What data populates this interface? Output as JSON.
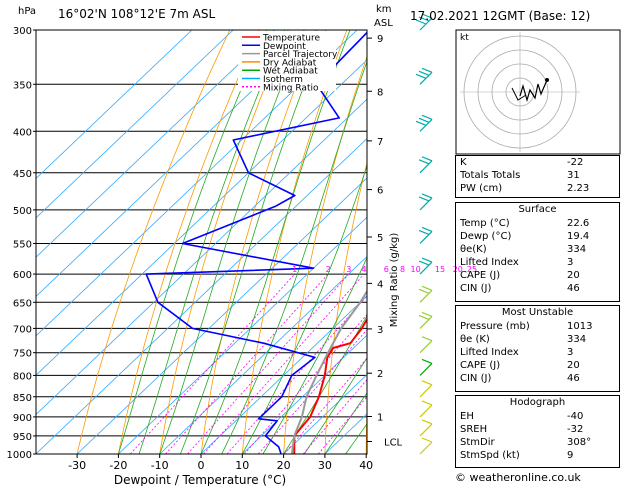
{
  "header": {
    "location": "16°02'N 108°12'E 7m ASL",
    "datetime": "17.02.2021 12GMT (Base: 12)",
    "hpa_label": "hPa",
    "km_label": "km",
    "asl_label": "ASL"
  },
  "legend": [
    {
      "name": "Temperature",
      "color": "#ff0000",
      "dash": ""
    },
    {
      "name": "Dewpoint",
      "color": "#0000ff",
      "dash": ""
    },
    {
      "name": "Parcel Trajectory",
      "color": "#999999",
      "dash": ""
    },
    {
      "name": "Dry Adiabat",
      "color": "#ff8c00",
      "dash": ""
    },
    {
      "name": "Wet Adiabat",
      "color": "#00aa00",
      "dash": ""
    },
    {
      "name": "Isotherm",
      "color": "#00aaff",
      "dash": ""
    },
    {
      "name": "Mixing Ratio",
      "color": "#ff00ff",
      "dash": "2,2"
    }
  ],
  "chart_data": {
    "type": "line",
    "xlabel": "Dewpoint / Temperature (°C)",
    "ylabel": "hPa",
    "right_label": "Mixing Ratio (g/kg)",
    "xlim": [
      -35,
      40
    ],
    "ylim": [
      1000,
      300
    ],
    "x_ticks": [
      -30,
      -20,
      -10,
      0,
      10,
      20,
      30,
      40
    ],
    "pressure_ticks": [
      300,
      350,
      400,
      450,
      500,
      550,
      600,
      650,
      700,
      750,
      800,
      850,
      900,
      950,
      1000
    ],
    "km_ticks": [
      {
        "label": "9",
        "p": 307
      },
      {
        "label": "8",
        "p": 357
      },
      {
        "label": "7",
        "p": 411
      },
      {
        "label": "6",
        "p": 472
      },
      {
        "label": "5",
        "p": 540
      },
      {
        "label": "4",
        "p": 616
      },
      {
        "label": "3",
        "p": 701
      },
      {
        "label": "2",
        "p": 795
      },
      {
        "label": "1",
        "p": 899
      }
    ],
    "lcl": {
      "label": "LCL",
      "p": 965
    },
    "mixing_ratios": [
      "1",
      "2",
      "3",
      "4",
      "6",
      "8",
      "10",
      "15",
      "20",
      "25"
    ],
    "series": [
      {
        "name": "Temperature",
        "color": "#ff0000",
        "points": [
          [
            300,
            -32
          ],
          [
            350,
            -24
          ],
          [
            400,
            -16
          ],
          [
            450,
            -8
          ],
          [
            480,
            -5
          ],
          [
            500,
            -5
          ],
          [
            550,
            -1
          ],
          [
            600,
            2
          ],
          [
            650,
            4
          ],
          [
            700,
            7
          ],
          [
            730,
            8
          ],
          [
            740,
            5
          ],
          [
            760,
            6
          ],
          [
            800,
            10
          ],
          [
            850,
            14
          ],
          [
            900,
            17
          ],
          [
            950,
            18
          ],
          [
            1000,
            22.6
          ]
        ]
      },
      {
        "name": "Dewpoint",
        "color": "#0000ff",
        "points": [
          [
            300,
            -67
          ],
          [
            350,
            -66
          ],
          [
            385,
            -52
          ],
          [
            410,
            -72
          ],
          [
            450,
            -60
          ],
          [
            480,
            -43
          ],
          [
            495,
            -45
          ],
          [
            550,
            -58
          ],
          [
            590,
            -20
          ],
          [
            600,
            -59
          ],
          [
            650,
            -49
          ],
          [
            700,
            -34
          ],
          [
            730,
            -13
          ],
          [
            760,
            3
          ],
          [
            800,
            2
          ],
          [
            850,
            5
          ],
          [
            905,
            5
          ],
          [
            910,
            10
          ],
          [
            950,
            11
          ],
          [
            980,
            17
          ],
          [
            1000,
            19.4
          ]
        ]
      },
      {
        "name": "Parcel Trajectory",
        "color": "#999999",
        "points": [
          [
            300,
            -34
          ],
          [
            350,
            -26
          ],
          [
            400,
            -19
          ],
          [
            450,
            -14
          ],
          [
            500,
            -9
          ],
          [
            550,
            -6
          ],
          [
            600,
            -3
          ],
          [
            650,
            0
          ],
          [
            700,
            2
          ],
          [
            750,
            5
          ],
          [
            800,
            8
          ],
          [
            850,
            11
          ],
          [
            900,
            15
          ],
          [
            950,
            18
          ],
          [
            1000,
            22
          ]
        ]
      }
    ]
  },
  "hodograph": {
    "unit_label": "kt"
  },
  "stats": {
    "top": [
      {
        "label": "K",
        "value": "-22"
      },
      {
        "label": "Totals Totals",
        "value": "31"
      },
      {
        "label": "PW (cm)",
        "value": "2.23"
      }
    ],
    "surface": {
      "title": "Surface",
      "rows": [
        {
          "label": "Temp (°C)",
          "value": "22.6"
        },
        {
          "label": "Dewp (°C)",
          "value": "19.4"
        },
        {
          "label": "θe(K)",
          "value": "334"
        },
        {
          "label": "Lifted Index",
          "value": "3"
        },
        {
          "label": "CAPE (J)",
          "value": "20"
        },
        {
          "label": "CIN (J)",
          "value": "46"
        }
      ]
    },
    "most_unstable": {
      "title": "Most Unstable",
      "rows": [
        {
          "label": "Pressure (mb)",
          "value": "1013"
        },
        {
          "label": "θe (K)",
          "value": "334"
        },
        {
          "label": "Lifted Index",
          "value": "3"
        },
        {
          "label": "CAPE (J)",
          "value": "20"
        },
        {
          "label": "CIN (J)",
          "value": "46"
        }
      ]
    },
    "hodograph_box": {
      "title": "Hodograph",
      "rows": [
        {
          "label": "EH",
          "value": "-40"
        },
        {
          "label": "SREH",
          "value": "-32"
        },
        {
          "label": "StmDir",
          "value": "308°"
        },
        {
          "label": "StmSpd (kt)",
          "value": "9"
        }
      ]
    }
  },
  "footer": {
    "copyright": "© weatheronline.co.uk"
  }
}
